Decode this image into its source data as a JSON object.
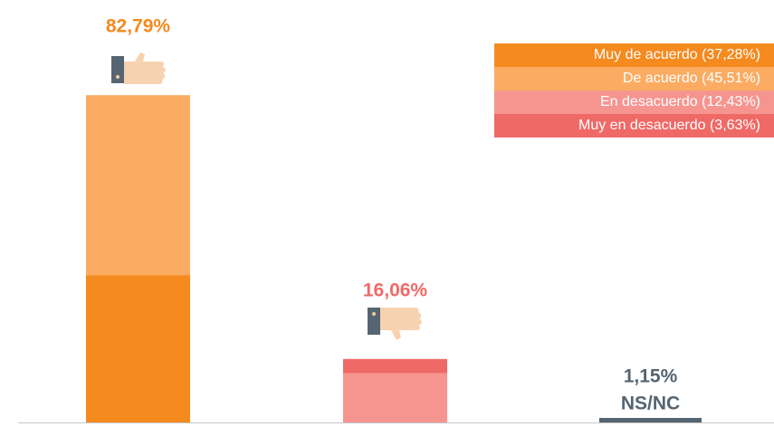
{
  "chart_data": {
    "type": "stacked_bar",
    "categories": [
      null,
      null,
      "NS/NC"
    ],
    "series": [
      {
        "name": "Muy de acuerdo (37,28%)",
        "color": "#f58a1f",
        "values": [
          37.28,
          null,
          null
        ]
      },
      {
        "name": "De acuerdo (45,51%)",
        "color": "#fbac62",
        "values": [
          45.51,
          null,
          null
        ]
      },
      {
        "name": "En desacuerdo (12,43%)",
        "color": "#f6958f",
        "values": [
          null,
          12.43,
          null
        ]
      },
      {
        "name": "Muy en desacuerdo (3,63%)",
        "color": "#ef6966",
        "values": [
          null,
          3.63,
          null
        ]
      },
      {
        "color": "#556571",
        "values": [
          null,
          null,
          1.15
        ]
      }
    ],
    "total_labels": [
      "82,79%",
      "16,06%",
      "1,15%"
    ],
    "total_label_colors": [
      "#f58a1f",
      "#ef6966",
      "#556571"
    ],
    "ylim": [
      0,
      100
    ]
  }
}
